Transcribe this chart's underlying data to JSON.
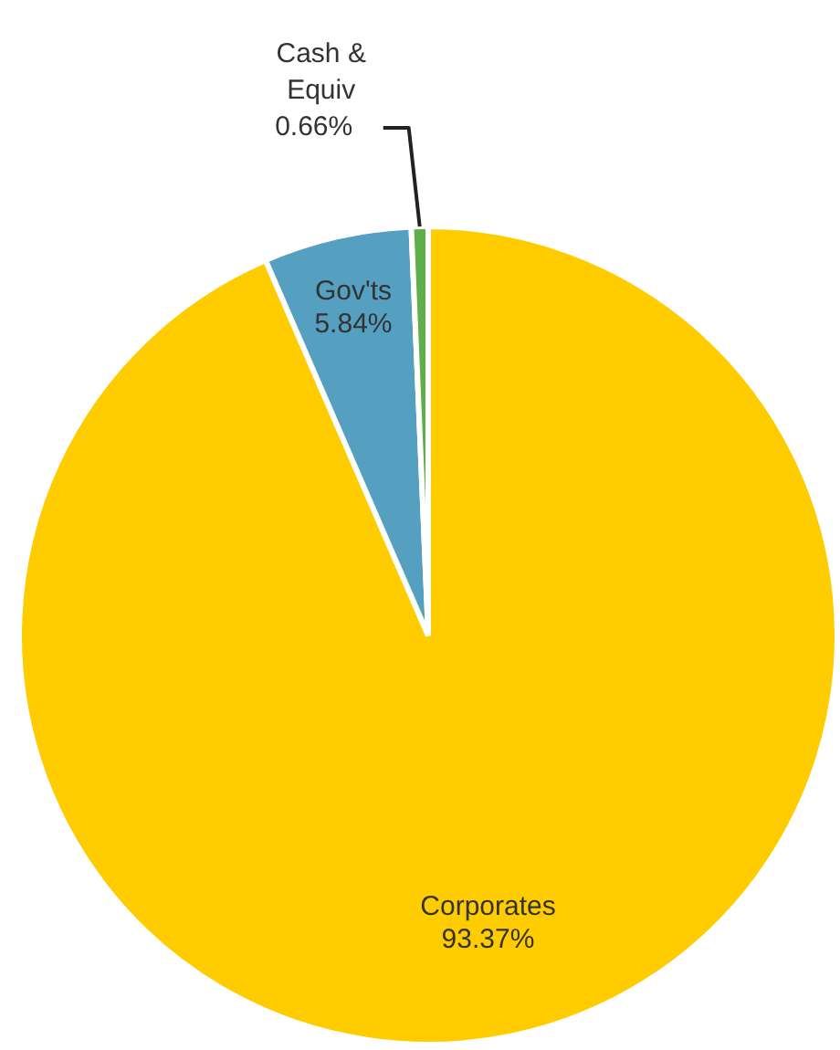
{
  "chart_data": {
    "type": "pie",
    "categories": [
      "Corporates",
      "Gov'ts",
      "Cash & Equiv"
    ],
    "values": [
      93.37,
      5.84,
      0.66
    ],
    "colors": [
      "#ffcc00",
      "#55a0c0",
      "#5fb04a"
    ],
    "value_labels": [
      "93.37%",
      "5.84%",
      "0.66%"
    ],
    "legend": false
  }
}
